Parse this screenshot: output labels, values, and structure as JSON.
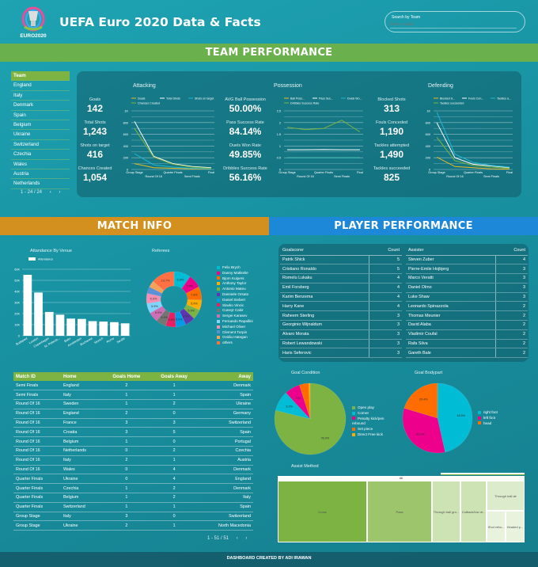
{
  "header": {
    "title": "UEFA Euro 2020 Data & Facts",
    "logo_text": "EURO2020",
    "search": {
      "label": "Search by Team",
      "placeholder": "Enter a value"
    }
  },
  "sections": {
    "team": "TEAM PERFORMANCE",
    "match": "MATCH INFO",
    "player": "PLAYER PERFORMANCE"
  },
  "colors": {
    "green": "#7cb342",
    "orange": "#d4901e",
    "blue": "#1e88d8",
    "bg": "#1893a3"
  },
  "team_list": {
    "header": "Team",
    "items": [
      "England",
      "Italy",
      "Denmark",
      "Spain",
      "Belgium",
      "Ukraine",
      "Switzerland",
      "Czechia",
      "Wales",
      "Austria",
      "Netherlands"
    ],
    "pager": "1 - 24 / 24"
  },
  "attacking": {
    "title": "Attacking",
    "kpis": [
      {
        "label": "Goals",
        "value": "142"
      },
      {
        "label": "Total Shots",
        "value": "1,243"
      },
      {
        "label": "Shots on target",
        "value": "416"
      },
      {
        "label": "Chances Created",
        "value": "1,054"
      }
    ]
  },
  "possession": {
    "title": "Possession",
    "kpis": [
      {
        "label": "AVG Ball Possession",
        "value": "50.00%"
      },
      {
        "label": "Pass Success Rate",
        "value": "84.14%"
      },
      {
        "label": "Duels Won Rate",
        "value": "49.85%"
      },
      {
        "label": "Dribbles Success Rate",
        "value": "56.16%"
      }
    ]
  },
  "defending": {
    "title": "Defending",
    "kpis": [
      {
        "label": "Blocked Shots",
        "value": "313"
      },
      {
        "label": "Fouls Conceded",
        "value": "1,190"
      },
      {
        "label": "Tackles attempted",
        "value": "1,490"
      },
      {
        "label": "Tackles succeeded",
        "value": "825"
      }
    ]
  },
  "chart_data": [
    {
      "id": "attacking",
      "type": "line",
      "categories": [
        "Group Stage",
        "Round Of 16",
        "Quarter Finals",
        "Semi Finals",
        "Final"
      ],
      "ylim": [
        0,
        1000
      ],
      "yticks": [
        "0",
        "200",
        "400",
        "600",
        "800",
        "1K"
      ],
      "legend": "top",
      "series": [
        {
          "name": "Goals",
          "color": "#e8b923",
          "values": [
            100,
            30,
            20,
            10,
            5
          ]
        },
        {
          "name": "Total Shots",
          "color": "#ffffff",
          "values": [
            820,
            225,
            100,
            50,
            30
          ]
        },
        {
          "name": "Shots on target",
          "color": "#1fb5d1",
          "values": [
            270,
            80,
            40,
            20,
            10
          ]
        },
        {
          "name": "Chances Created",
          "color": "#7cb342",
          "values": [
            700,
            210,
            90,
            40,
            20
          ]
        }
      ]
    },
    {
      "id": "possession",
      "type": "line",
      "categories": [
        "Group Stage",
        "Round Of 16",
        "Quarter Finals",
        "Semi Finals",
        "Final"
      ],
      "ylim": [
        0,
        2.5
      ],
      "yticks": [
        "0",
        "0.5",
        "1",
        "1.5",
        "2",
        "2.5"
      ],
      "legend": "top",
      "series": [
        {
          "name": "Ball Poss...",
          "color": "#e8b923",
          "values": [
            0.5,
            0.5,
            0.5,
            0.5,
            0.5
          ]
        },
        {
          "name": "Pass Suc...",
          "color": "#ffffff",
          "values": [
            0.84,
            0.84,
            0.85,
            0.84,
            0.84
          ]
        },
        {
          "name": "Duels Wo...",
          "color": "#1fb5d1",
          "values": [
            0.5,
            0.5,
            0.5,
            0.5,
            0.5
          ]
        },
        {
          "name": "Dribbles Success Rate",
          "color": "#7cb342",
          "values": [
            1.8,
            1.7,
            1.75,
            2.1,
            1.6
          ]
        }
      ]
    },
    {
      "id": "defending",
      "type": "line",
      "categories": [
        "Group Stage",
        "Round Of 16",
        "Quarter Finals",
        "Semi Finals",
        "Final"
      ],
      "ylim": [
        0,
        1000
      ],
      "yticks": [
        "0",
        "200",
        "400",
        "600",
        "800",
        "1K"
      ],
      "legend": "top",
      "series": [
        {
          "name": "Blocked S...",
          "color": "#e8b923",
          "values": [
            210,
            50,
            30,
            10,
            5
          ]
        },
        {
          "name": "Fouls Con...",
          "color": "#ffffff",
          "values": [
            800,
            200,
            90,
            60,
            30
          ]
        },
        {
          "name": "Tackles a...",
          "color": "#1fb5d1",
          "values": [
            980,
            260,
            120,
            70,
            40
          ]
        },
        {
          "name": "Tackles succeeded",
          "color": "#7cb342",
          "values": [
            550,
            150,
            70,
            40,
            20
          ]
        }
      ]
    },
    {
      "id": "attendance",
      "type": "bar",
      "title": "Attandance By Venue",
      "legend_label": "Attendance",
      "categories": [
        "Budapest",
        "London",
        "Copenhagen",
        "St. Petersb...",
        "Baku",
        "Amsterdam",
        "Bucharest",
        "Munich",
        "Rome",
        "Seville"
      ],
      "values": [
        55000,
        39000,
        21500,
        19000,
        15500,
        15200,
        13200,
        12800,
        12300,
        11200
      ],
      "ylim": [
        0,
        60000
      ],
      "yticks": [
        "0",
        "10K",
        "20K",
        "30K",
        "40K",
        "50K",
        "60K"
      ]
    },
    {
      "id": "referees",
      "type": "pie",
      "title": "Referees",
      "labels": [
        "Felix Brych",
        "Danny Makkelie",
        "Bjorn Kuipers",
        "Anthony Taylor",
        "Antonio Mateu",
        "Danniele Orsato",
        "Daniel Siebert",
        "Slavko Vincic",
        "Cuneyt Cakir",
        "Sergei Karasev",
        "Fernando Rapallini",
        "Michael Oliver",
        "Clement Turpin",
        "Ovidiu Hategan",
        "others"
      ],
      "values": [
        9.8,
        7.8,
        7.8,
        5.9,
        5.9,
        5.9,
        5.9,
        5.9,
        5.9,
        5.9,
        5.9,
        5.9,
        3.9,
        3.9,
        13.7
      ],
      "colors": [
        "#00bcd4",
        "#ec008c",
        "#ff6d00",
        "#ffab00",
        "#7cb342",
        "#5e35b1",
        "#039be5",
        "#e91e63",
        "#757575",
        "#ce6fb5",
        "#81d4fa",
        "#f48fb1",
        "#5c8fd6",
        "#f4a259",
        "#ff7043"
      ]
    },
    {
      "id": "goal_condition",
      "type": "pie",
      "title": "Goal Condition",
      "labels": [
        "Open play",
        "Corner",
        "Penalty kick/pen rebound",
        "Set piece",
        "Direct Free kick"
      ],
      "values": [
        78.9,
        9.2,
        7,
        4.2,
        0.7
      ],
      "colors": [
        "#7cb342",
        "#00bcd4",
        "#ec008c",
        "#ff6d00",
        "#ffab00"
      ]
    },
    {
      "id": "goal_bodypart",
      "type": "pie",
      "title": "Goal Bodypart",
      "labels": [
        "right foot",
        "left foot",
        "head"
      ],
      "values": [
        46.5,
        33.1,
        20.4
      ],
      "colors": [
        "#00bcd4",
        "#ec008c",
        "#ff6d00"
      ]
    },
    {
      "id": "assist_method",
      "type": "treemap",
      "title": "Assist Method",
      "root": "All",
      "items": [
        "Cross",
        "Pass",
        "Through ball gro...",
        "Cutback/low dr...",
        "Through ball air",
        "Shot rebo...",
        "Headed p..."
      ]
    }
  ],
  "matches": {
    "headers": [
      "Match ID",
      "Home",
      "Goals Home",
      "Goals Away",
      "Away"
    ],
    "pager": "1 - 51 / 51",
    "rows": [
      [
        "Semi Finals",
        "England",
        "2",
        "1",
        "Denmark"
      ],
      [
        "Semi Finals",
        "Italy",
        "1",
        "1",
        "Spain"
      ],
      [
        "Round Of 16",
        "Sweden",
        "1",
        "2",
        "Ukraine"
      ],
      [
        "Round Of 16",
        "England",
        "2",
        "0",
        "Germany"
      ],
      [
        "Round Of 16",
        "France",
        "3",
        "3",
        "Switzerland"
      ],
      [
        "Round Of 16",
        "Croatia",
        "3",
        "5",
        "Spain"
      ],
      [
        "Round Of 16",
        "Belgium",
        "1",
        "0",
        "Portugal"
      ],
      [
        "Round Of 16",
        "Netherlands",
        "0",
        "2",
        "Czechia"
      ],
      [
        "Round Of 16",
        "Italy",
        "2",
        "1",
        "Austria"
      ],
      [
        "Round Of 16",
        "Wales",
        "0",
        "4",
        "Denmark"
      ],
      [
        "Quarter Finals",
        "Ukraine",
        "0",
        "4",
        "England"
      ],
      [
        "Quarter Finals",
        "Czechia",
        "1",
        "2",
        "Denmark"
      ],
      [
        "Quarter Finals",
        "Belgium",
        "1",
        "2",
        "Italy"
      ],
      [
        "Quarter Finals",
        "Switzerland",
        "1",
        "1",
        "Spain"
      ],
      [
        "Group Stage",
        "Italy",
        "3",
        "0",
        "Switzerland"
      ],
      [
        "Group Stage",
        "Ukraine",
        "2",
        "1",
        "North Macedonia"
      ]
    ]
  },
  "scorers": {
    "headers": [
      "Goalscorer",
      "Count"
    ],
    "rows": [
      [
        "Patrik Shick",
        "5"
      ],
      [
        "Cristiano Ronaldo",
        "5"
      ],
      [
        "Romelu Lukaku",
        "4"
      ],
      [
        "Emil Forsberg",
        "4"
      ],
      [
        "Karim Benzema",
        "4"
      ],
      [
        "Harry Kane",
        "4"
      ],
      [
        "Raheem Sterling",
        "3"
      ],
      [
        "Georginio Wijnaldum",
        "3"
      ],
      [
        "Alvaro Morata",
        "3"
      ],
      [
        "Robert Lewandowski",
        "3"
      ],
      [
        "Haris Seferovic",
        "3"
      ]
    ]
  },
  "assisters": {
    "headers": [
      "Assister",
      "Count"
    ],
    "rows": [
      [
        "Steven Zuber",
        "4"
      ],
      [
        "Pierre-Emile Hojbjerg",
        "3"
      ],
      [
        "Marco Veratti",
        "3"
      ],
      [
        "Daniel Olmo",
        "3"
      ],
      [
        "Luke Shaw",
        "3"
      ],
      [
        "Leonardo Spinazzola",
        "2"
      ],
      [
        "Thomas Meunier",
        "2"
      ],
      [
        "David Alaba",
        "2"
      ],
      [
        "Vladimir Coufal",
        "2"
      ],
      [
        "Rafa Silva",
        "2"
      ],
      [
        "Gareth Bale",
        "2"
      ]
    ]
  },
  "footer": "DASHBOARD CREATED BY ADI IRAWAN"
}
